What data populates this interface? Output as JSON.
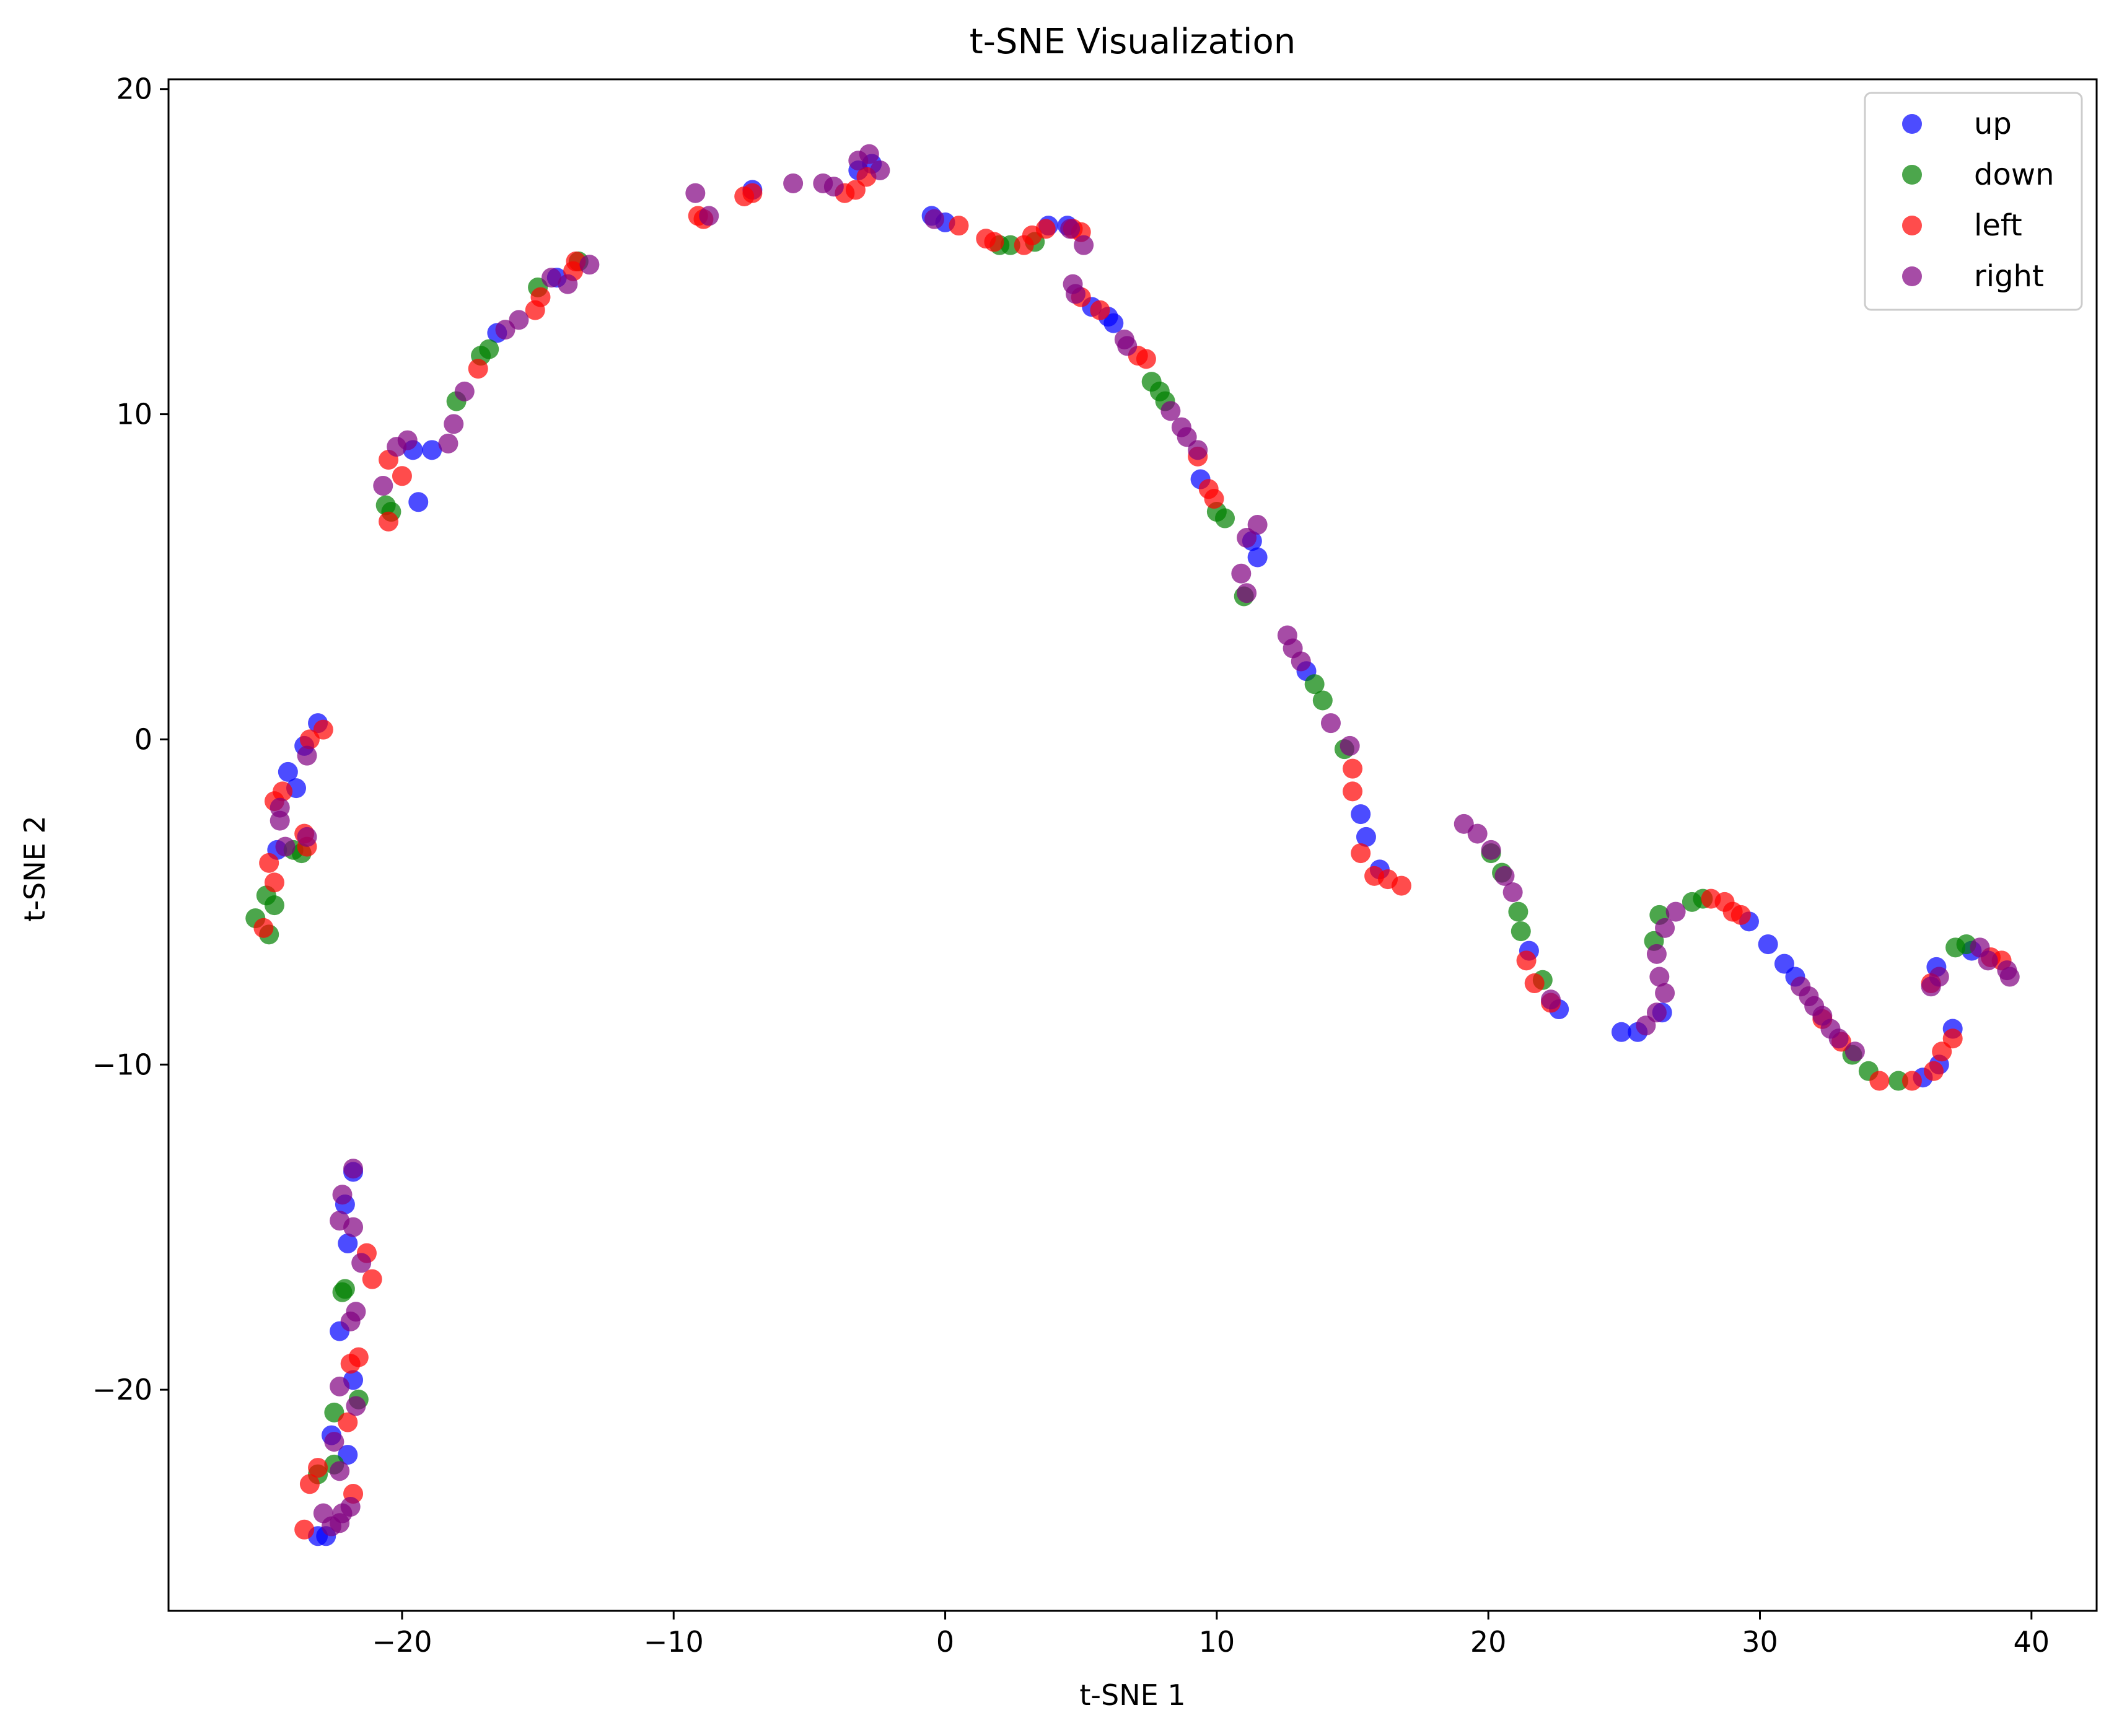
{
  "chart_data": {
    "type": "scatter",
    "title": "t-SNE Visualization",
    "xlabel": "t-SNE 1",
    "ylabel": "t-SNE 2",
    "xlim": [
      -28.6,
      42.4
    ],
    "ylim": [
      -26.8,
      20.3
    ],
    "xticks": [
      -20,
      -10,
      0,
      10,
      20,
      30,
      40
    ],
    "yticks": [
      -20,
      -10,
      0,
      10,
      20
    ],
    "xtick_labels": [
      "−20",
      "−10",
      "0",
      "10",
      "20",
      "30",
      "40"
    ],
    "ytick_labels": [
      "−20",
      "−10",
      "0",
      "10",
      "20"
    ],
    "grid": false,
    "legend_position": "top-right",
    "series": [
      {
        "name": "up",
        "color": "#0000ff",
        "points": [
          [
            -23.1,
            0.5
          ],
          [
            -23.6,
            -0.2
          ],
          [
            -24.2,
            -1.0
          ],
          [
            -23.9,
            -1.5
          ],
          [
            -24.6,
            -3.4
          ],
          [
            -21.8,
            -13.3
          ],
          [
            -22.1,
            -14.3
          ],
          [
            -22.0,
            -15.5
          ],
          [
            -22.3,
            -18.2
          ],
          [
            -21.8,
            -19.7
          ],
          [
            -22.6,
            -21.4
          ],
          [
            -22.0,
            -22.0
          ],
          [
            -22.8,
            -24.5
          ],
          [
            -23.1,
            -24.5
          ],
          [
            -19.4,
            7.3
          ],
          [
            -19.6,
            8.9
          ],
          [
            -18.9,
            8.9
          ],
          [
            -16.5,
            12.5
          ],
          [
            -14.3,
            14.2
          ],
          [
            -7.1,
            16.9
          ],
          [
            -2.7,
            17.7
          ],
          [
            -3.2,
            17.5
          ],
          [
            -0.5,
            16.1
          ],
          [
            0.0,
            15.9
          ],
          [
            3.8,
            15.8
          ],
          [
            4.5,
            15.8
          ],
          [
            5.4,
            13.3
          ],
          [
            6.0,
            13.0
          ],
          [
            6.2,
            12.8
          ],
          [
            9.4,
            8.0
          ],
          [
            11.3,
            6.1
          ],
          [
            11.5,
            5.6
          ],
          [
            13.3,
            2.1
          ],
          [
            15.3,
            -2.3
          ],
          [
            15.5,
            -3.0
          ],
          [
            16.0,
            -4.0
          ],
          [
            21.5,
            -6.5
          ],
          [
            22.6,
            -8.3
          ],
          [
            24.9,
            -9.0
          ],
          [
            25.5,
            -9.0
          ],
          [
            26.4,
            -8.4
          ],
          [
            29.6,
            -5.6
          ],
          [
            30.3,
            -6.3
          ],
          [
            30.9,
            -6.9
          ],
          [
            31.3,
            -7.3
          ],
          [
            36.0,
            -10.4
          ],
          [
            36.6,
            -10.0
          ],
          [
            37.1,
            -8.9
          ],
          [
            36.5,
            -7.0
          ],
          [
            37.8,
            -6.5
          ]
        ]
      },
      {
        "name": "down",
        "color": "#008000",
        "points": [
          [
            -24.9,
            -6.0
          ],
          [
            -25.4,
            -5.5
          ],
          [
            -25.0,
            -4.8
          ],
          [
            -24.7,
            -5.1
          ],
          [
            -24.0,
            -3.4
          ],
          [
            -23.7,
            -3.5
          ],
          [
            -22.2,
            -17.0
          ],
          [
            -22.1,
            -16.9
          ],
          [
            -22.5,
            -20.7
          ],
          [
            -21.6,
            -20.3
          ],
          [
            -22.5,
            -22.3
          ],
          [
            -23.1,
            -22.6
          ],
          [
            -20.6,
            7.2
          ],
          [
            -20.4,
            7.0
          ],
          [
            -18.0,
            10.4
          ],
          [
            -17.1,
            11.8
          ],
          [
            -16.8,
            12.0
          ],
          [
            -15.0,
            13.9
          ],
          [
            -13.5,
            14.7
          ],
          [
            2.0,
            15.2
          ],
          [
            2.4,
            15.2
          ],
          [
            3.3,
            15.3
          ],
          [
            7.6,
            11.0
          ],
          [
            7.9,
            10.7
          ],
          [
            8.1,
            10.4
          ],
          [
            10.0,
            7.0
          ],
          [
            10.3,
            6.8
          ],
          [
            11.0,
            4.4
          ],
          [
            13.6,
            1.7
          ],
          [
            13.9,
            1.2
          ],
          [
            14.7,
            -0.3
          ],
          [
            20.1,
            -3.5
          ],
          [
            20.5,
            -4.1
          ],
          [
            21.1,
            -5.3
          ],
          [
            21.2,
            -5.9
          ],
          [
            22.0,
            -7.4
          ],
          [
            26.1,
            -6.2
          ],
          [
            26.3,
            -5.4
          ],
          [
            27.5,
            -5.0
          ],
          [
            27.9,
            -4.9
          ],
          [
            33.4,
            -9.7
          ],
          [
            34.0,
            -10.2
          ],
          [
            35.1,
            -10.5
          ],
          [
            37.2,
            -6.4
          ],
          [
            37.6,
            -6.3
          ]
        ]
      },
      {
        "name": "left",
        "color": "#ff0000",
        "points": [
          [
            -23.4,
            0.0
          ],
          [
            -22.9,
            0.3
          ],
          [
            -24.4,
            -1.6
          ],
          [
            -24.7,
            -1.9
          ],
          [
            -23.6,
            -2.9
          ],
          [
            -23.5,
            -3.3
          ],
          [
            -24.9,
            -3.8
          ],
          [
            -24.7,
            -4.4
          ],
          [
            -25.1,
            -5.8
          ],
          [
            -21.3,
            -15.8
          ],
          [
            -21.1,
            -16.6
          ],
          [
            -21.9,
            -19.2
          ],
          [
            -21.6,
            -19.0
          ],
          [
            -22.0,
            -21.0
          ],
          [
            -23.1,
            -22.4
          ],
          [
            -23.4,
            -22.9
          ],
          [
            -23.6,
            -24.3
          ],
          [
            -21.8,
            -23.2
          ],
          [
            -20.5,
            6.7
          ],
          [
            -20.5,
            8.6
          ],
          [
            -20.0,
            8.1
          ],
          [
            -17.2,
            11.4
          ],
          [
            -15.1,
            13.2
          ],
          [
            -14.9,
            13.6
          ],
          [
            -13.7,
            14.4
          ],
          [
            -13.6,
            14.7
          ],
          [
            -9.1,
            16.1
          ],
          [
            -8.9,
            16.0
          ],
          [
            -7.4,
            16.7
          ],
          [
            -7.1,
            16.8
          ],
          [
            -3.7,
            16.8
          ],
          [
            -3.3,
            16.9
          ],
          [
            -2.9,
            17.3
          ],
          [
            0.5,
            15.8
          ],
          [
            1.5,
            15.4
          ],
          [
            1.8,
            15.3
          ],
          [
            2.9,
            15.2
          ],
          [
            3.2,
            15.5
          ],
          [
            3.7,
            15.7
          ],
          [
            5.0,
            15.6
          ],
          [
            4.7,
            15.7
          ],
          [
            5.0,
            13.6
          ],
          [
            5.7,
            13.2
          ],
          [
            7.1,
            11.8
          ],
          [
            7.4,
            11.7
          ],
          [
            9.3,
            8.7
          ],
          [
            9.7,
            7.7
          ],
          [
            9.9,
            7.4
          ],
          [
            15.0,
            -0.9
          ],
          [
            15.0,
            -1.6
          ],
          [
            15.3,
            -3.5
          ],
          [
            15.8,
            -4.2
          ],
          [
            16.3,
            -4.3
          ],
          [
            16.8,
            -4.5
          ],
          [
            21.4,
            -6.8
          ],
          [
            21.7,
            -7.5
          ],
          [
            22.3,
            -8.1
          ],
          [
            28.2,
            -4.9
          ],
          [
            28.7,
            -5.0
          ],
          [
            29.0,
            -5.3
          ],
          [
            29.3,
            -5.4
          ],
          [
            32.3,
            -8.6
          ],
          [
            33.0,
            -9.3
          ],
          [
            34.4,
            -10.5
          ],
          [
            35.6,
            -10.5
          ],
          [
            36.4,
            -10.2
          ],
          [
            36.7,
            -9.6
          ],
          [
            37.1,
            -9.2
          ],
          [
            36.3,
            -7.5
          ],
          [
            38.5,
            -6.7
          ],
          [
            38.9,
            -6.8
          ]
        ]
      },
      {
        "name": "right",
        "color": "#800080",
        "points": [
          [
            -23.5,
            -0.5
          ],
          [
            -24.5,
            -2.1
          ],
          [
            -24.5,
            -2.5
          ],
          [
            -24.3,
            -3.3
          ],
          [
            -23.5,
            -3.0
          ],
          [
            -21.8,
            -13.2
          ],
          [
            -22.2,
            -14.0
          ],
          [
            -21.8,
            -15.0
          ],
          [
            -22.3,
            -14.8
          ],
          [
            -21.5,
            -16.1
          ],
          [
            -21.9,
            -17.9
          ],
          [
            -21.7,
            -17.6
          ],
          [
            -22.3,
            -19.9
          ],
          [
            -21.7,
            -20.5
          ],
          [
            -22.5,
            -21.6
          ],
          [
            -22.3,
            -22.5
          ],
          [
            -22.9,
            -23.8
          ],
          [
            -22.2,
            -23.8
          ],
          [
            -21.9,
            -23.6
          ],
          [
            -22.3,
            -24.1
          ],
          [
            -22.6,
            -24.2
          ],
          [
            -20.7,
            7.8
          ],
          [
            -20.2,
            9.0
          ],
          [
            -19.8,
            9.2
          ],
          [
            -18.3,
            9.1
          ],
          [
            -18.1,
            9.7
          ],
          [
            -17.7,
            10.7
          ],
          [
            -16.2,
            12.6
          ],
          [
            -15.7,
            12.9
          ],
          [
            -14.5,
            14.2
          ],
          [
            -13.9,
            14.0
          ],
          [
            -13.1,
            14.6
          ],
          [
            -9.2,
            16.8
          ],
          [
            -8.7,
            16.1
          ],
          [
            -5.6,
            17.1
          ],
          [
            -4.5,
            17.1
          ],
          [
            -4.1,
            17.0
          ],
          [
            -3.2,
            17.8
          ],
          [
            -2.8,
            18.0
          ],
          [
            -2.4,
            17.5
          ],
          [
            -0.4,
            16.0
          ],
          [
            4.6,
            15.7
          ],
          [
            5.1,
            15.2
          ],
          [
            4.7,
            14.0
          ],
          [
            4.8,
            13.7
          ],
          [
            6.6,
            12.3
          ],
          [
            6.7,
            12.1
          ],
          [
            8.3,
            10.1
          ],
          [
            8.7,
            9.6
          ],
          [
            8.9,
            9.3
          ],
          [
            9.3,
            8.9
          ],
          [
            11.5,
            6.6
          ],
          [
            11.1,
            6.2
          ],
          [
            10.9,
            5.1
          ],
          [
            11.1,
            4.5
          ],
          [
            12.6,
            3.2
          ],
          [
            12.8,
            2.8
          ],
          [
            13.1,
            2.4
          ],
          [
            14.2,
            0.5
          ],
          [
            14.9,
            -0.2
          ],
          [
            19.1,
            -2.6
          ],
          [
            19.6,
            -2.9
          ],
          [
            20.1,
            -3.4
          ],
          [
            20.6,
            -4.2
          ],
          [
            20.9,
            -4.7
          ],
          [
            22.3,
            -8.0
          ],
          [
            25.8,
            -8.8
          ],
          [
            26.2,
            -8.4
          ],
          [
            26.5,
            -7.8
          ],
          [
            26.3,
            -7.3
          ],
          [
            26.2,
            -6.6
          ],
          [
            26.5,
            -5.8
          ],
          [
            26.9,
            -5.3
          ],
          [
            31.5,
            -7.6
          ],
          [
            31.8,
            -7.9
          ],
          [
            32.0,
            -8.2
          ],
          [
            32.3,
            -8.5
          ],
          [
            32.6,
            -8.9
          ],
          [
            32.9,
            -9.2
          ],
          [
            33.5,
            -9.6
          ],
          [
            36.3,
            -7.6
          ],
          [
            36.6,
            -7.3
          ],
          [
            38.1,
            -6.4
          ],
          [
            38.4,
            -6.8
          ],
          [
            39.1,
            -7.1
          ],
          [
            39.2,
            -7.3
          ]
        ]
      }
    ]
  }
}
